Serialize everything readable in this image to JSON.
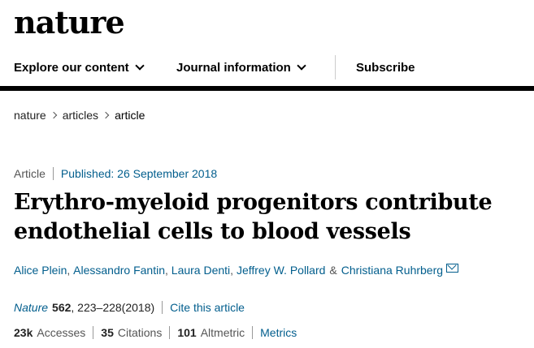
{
  "masthead": {
    "logo_text": "nature"
  },
  "nav": {
    "explore_label": "Explore our content",
    "journal_label": "Journal information",
    "subscribe_label": "Subscribe"
  },
  "breadcrumb": {
    "items": [
      "nature",
      "articles",
      "article"
    ]
  },
  "meta": {
    "type": "Article",
    "published": "Published: 26 September 2018"
  },
  "title": "Erythro-myeloid progenitors contribute endothelial cells to blood vessels",
  "authors": {
    "names": [
      "Alice Plein",
      "Alessandro Fantin",
      "Laura Denti",
      "Jeffrey W. Pollard",
      "Christiana Ruhrberg"
    ],
    "separator": ",",
    "ampersand": "&"
  },
  "citation": {
    "journal": "Nature",
    "volume": "562",
    "pages": ", 223–228(2018)",
    "cite_label": "Cite this article"
  },
  "metrics": {
    "accesses_num": "23k",
    "accesses_label": "Accesses",
    "citations_num": "35",
    "citations_label": "Citations",
    "altmetric_num": "101",
    "altmetric_label": "Altmetric",
    "metrics_link": "Metrics"
  },
  "colors": {
    "link": "#025e8d",
    "text": "#222222",
    "rule": "#000000"
  },
  "icons": {
    "nav_dropdown": "chevron-down-icon",
    "breadcrumb_sep": "chevron-right-icon",
    "author_contact": "mail-icon"
  }
}
